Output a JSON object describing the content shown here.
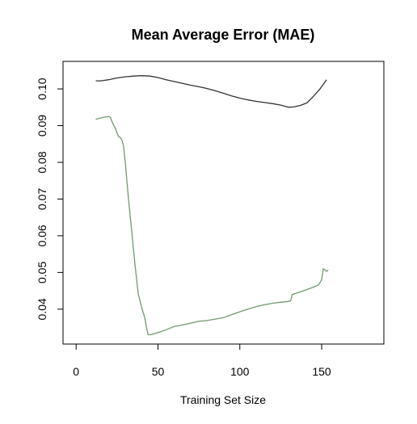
{
  "chart_data": {
    "type": "line",
    "title": "Mean Average Error (MAE)",
    "xlabel": "Training Set Size",
    "ylabel": "",
    "xlim": [
      -8,
      188
    ],
    "ylim": [
      0.0305,
      0.1075
    ],
    "x_ticks": [
      0,
      50,
      100,
      150
    ],
    "y_ticks": [
      0.04,
      0.05,
      0.06,
      0.07,
      0.08,
      0.09,
      0.1
    ],
    "x_tick_labels": [
      "0",
      "50",
      "100",
      "150"
    ],
    "y_tick_labels": [
      "0.04",
      "0.05",
      "0.06",
      "0.07",
      "0.08",
      "0.09",
      "0.10"
    ],
    "grid": false,
    "series": [
      {
        "color": "#333333",
        "points": [
          [
            12,
            0.1022
          ],
          [
            15,
            0.1022
          ],
          [
            20,
            0.1025
          ],
          [
            25,
            0.103
          ],
          [
            30,
            0.1033
          ],
          [
            35,
            0.1035
          ],
          [
            40,
            0.1036
          ],
          [
            45,
            0.1035
          ],
          [
            50,
            0.1031
          ],
          [
            55,
            0.1025
          ],
          [
            60,
            0.102
          ],
          [
            65,
            0.1015
          ],
          [
            70,
            0.101
          ],
          [
            75,
            0.1006
          ],
          [
            80,
            0.1001
          ],
          [
            85,
            0.0995
          ],
          [
            90,
            0.0988
          ],
          [
            95,
            0.0981
          ],
          [
            100,
            0.0975
          ],
          [
            105,
            0.097
          ],
          [
            110,
            0.0966
          ],
          [
            115,
            0.0963
          ],
          [
            120,
            0.096
          ],
          [
            125,
            0.0956
          ],
          [
            128,
            0.0952
          ],
          [
            130,
            0.095
          ],
          [
            133,
            0.0951
          ],
          [
            137,
            0.0955
          ],
          [
            141,
            0.0962
          ],
          [
            145,
            0.098
          ],
          [
            149,
            0.1
          ],
          [
            153,
            0.1025
          ]
        ]
      },
      {
        "color": "#6f9a6f",
        "points": [
          [
            12,
            0.0917
          ],
          [
            14,
            0.092
          ],
          [
            17,
            0.0923
          ],
          [
            20,
            0.0925
          ],
          [
            21,
            0.0922
          ],
          [
            22,
            0.091
          ],
          [
            23,
            0.09
          ],
          [
            24,
            0.0893
          ],
          [
            25,
            0.088
          ],
          [
            26,
            0.087
          ],
          [
            27,
            0.0868
          ],
          [
            28,
            0.086
          ],
          [
            29,
            0.0845
          ],
          [
            30,
            0.08
          ],
          [
            32,
            0.07
          ],
          [
            34,
            0.061
          ],
          [
            36,
            0.052
          ],
          [
            38,
            0.044
          ],
          [
            40,
            0.0405
          ],
          [
            42,
            0.0375
          ],
          [
            43,
            0.035
          ],
          [
            44,
            0.033
          ],
          [
            46,
            0.0331
          ],
          [
            50,
            0.0336
          ],
          [
            55,
            0.0344
          ],
          [
            60,
            0.0353
          ],
          [
            65,
            0.0357
          ],
          [
            70,
            0.0362
          ],
          [
            75,
            0.0367
          ],
          [
            80,
            0.0369
          ],
          [
            85,
            0.0373
          ],
          [
            90,
            0.0377
          ],
          [
            95,
            0.0385
          ],
          [
            100,
            0.0393
          ],
          [
            105,
            0.04
          ],
          [
            110,
            0.0407
          ],
          [
            115,
            0.0412
          ],
          [
            120,
            0.0416
          ],
          [
            125,
            0.0419
          ],
          [
            128,
            0.042
          ],
          [
            131,
            0.0422
          ],
          [
            132,
            0.044
          ],
          [
            135,
            0.0444
          ],
          [
            140,
            0.0452
          ],
          [
            145,
            0.046
          ],
          [
            148,
            0.0466
          ],
          [
            150,
            0.048
          ],
          [
            151,
            0.051
          ],
          [
            152,
            0.0507
          ],
          [
            153,
            0.0503
          ],
          [
            154,
            0.0507
          ]
        ]
      }
    ]
  }
}
